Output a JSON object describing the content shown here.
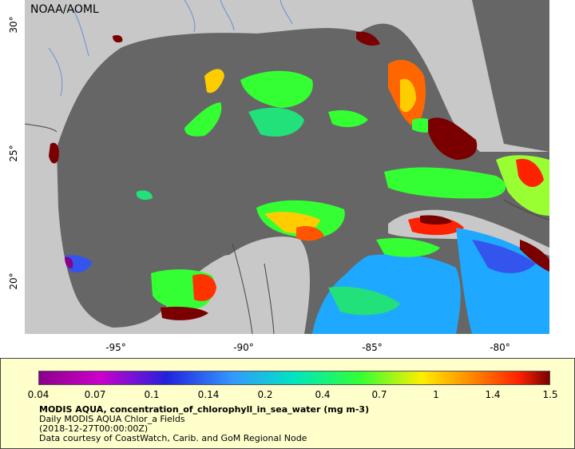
{
  "map": {
    "credit": "NOAA/AOML",
    "colors": {
      "land": "#c8c8c8",
      "ocean_missing": "#666666",
      "border": "#444444",
      "river": "#6a8fd0"
    },
    "x_ticks": [
      "-95°",
      "-90°",
      "-85°",
      "-80°"
    ],
    "y_ticks": [
      "30°",
      "25°",
      "20°"
    ]
  },
  "legend": {
    "colorbar_ticks": [
      "0.04",
      "0.07",
      "0.1",
      "0.14",
      "0.2",
      "0.4",
      "0.7",
      "1",
      "1.4",
      "1.5"
    ],
    "title": "MODIS AQUA, concentration_of_chlorophyll_in_sea_water (mg m-3)",
    "line2": "Daily MODIS AQUA Chlor_a Fields",
    "line3": "(2018-12-27T00:00:00Z)",
    "line4": "Data courtesy of CoastWatch, Carib. and GoM Regional Node"
  }
}
